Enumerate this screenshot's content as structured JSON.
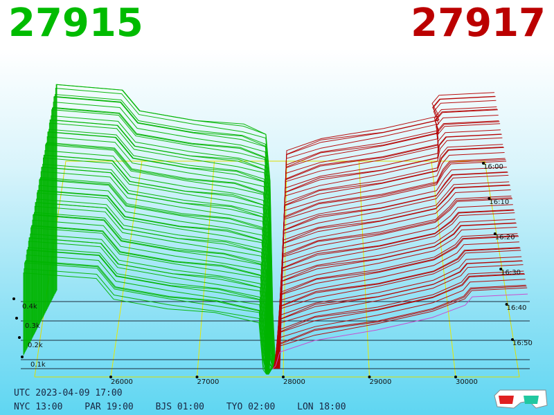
{
  "header": {
    "bid_price": "27915",
    "ask_price": "27917",
    "bid_color": "#00bb00",
    "ask_color": "#bb0000"
  },
  "footer": {
    "utc": "UTC 2023-04-09 17:00",
    "zones": [
      "NYC 13:00",
      "PAR 19:00",
      "BJS 01:00",
      "TYO 02:00",
      "LON 18:00"
    ]
  },
  "icons": {
    "glasses": "anaglyph-3d-glasses-icon"
  },
  "chart_data": {
    "type": "area",
    "price_ticks": [
      "26000",
      "27000",
      "28000",
      "29000",
      "30000"
    ],
    "volume_ticks": [
      "0.1k",
      "0.2k",
      "0.3k",
      "0.4k"
    ],
    "time_ticks": [
      "16:00",
      "16:10",
      "16:20",
      "16:30",
      "16:40",
      "16:50"
    ],
    "grid": true,
    "mid_price": 27916,
    "series": [
      {
        "side": "bid",
        "color": "#00b400",
        "levels": [
          [
            26450,
            460
          ],
          [
            27100,
            420
          ],
          [
            27600,
            410
          ],
          [
            27800,
            400
          ],
          [
            27900,
            180
          ]
        ]
      },
      {
        "side": "ask",
        "color": "#b40000",
        "levels": [
          [
            27930,
            100
          ],
          [
            28100,
            260
          ],
          [
            29000,
            320
          ],
          [
            30000,
            360
          ],
          [
            30450,
            380
          ]
        ]
      }
    ]
  }
}
